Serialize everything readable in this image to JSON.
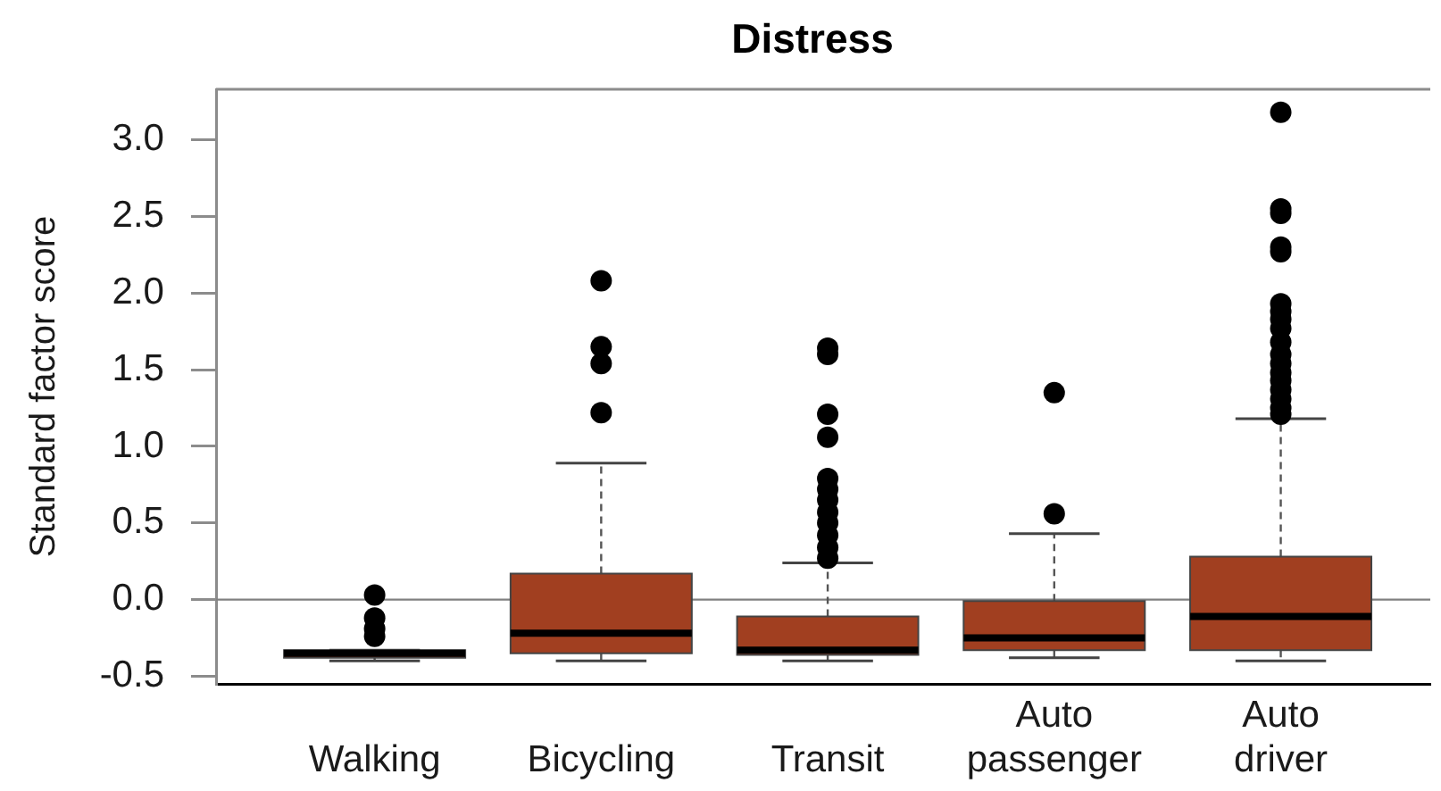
{
  "chart_data": {
    "type": "box",
    "title": "Distress",
    "ylabel": "Standard factor score",
    "categories": [
      "Walking",
      "Bicycling",
      "Transit",
      "Auto passenger",
      "Auto driver"
    ],
    "color": "#a13f20",
    "boxes": [
      {
        "low": -0.4,
        "q1": -0.38,
        "median": -0.35,
        "q3": -0.33,
        "high": -0.33,
        "outliers": [
          0.03,
          -0.12,
          -0.19,
          -0.24
        ]
      },
      {
        "low": -0.4,
        "q1": -0.35,
        "median": -0.22,
        "q3": 0.17,
        "high": 0.89,
        "outliers": [
          2.08,
          1.65,
          1.54,
          1.22
        ]
      },
      {
        "low": -0.4,
        "q1": -0.36,
        "median": -0.33,
        "q3": -0.11,
        "high": 0.24,
        "outliers": [
          1.64,
          1.6,
          1.21,
          1.06,
          0.79,
          0.72,
          0.65,
          0.57,
          0.5,
          0.42,
          0.34,
          0.27
        ]
      },
      {
        "low": -0.38,
        "q1": -0.33,
        "median": -0.25,
        "q3": -0.01,
        "high": 0.43,
        "outliers": [
          1.35,
          0.56
        ]
      },
      {
        "low": -0.4,
        "q1": -0.33,
        "median": -0.11,
        "q3": 0.28,
        "high": 1.18,
        "outliers": [
          3.18,
          2.55,
          2.52,
          2.3,
          2.27,
          1.93,
          1.88,
          1.83,
          1.77,
          1.68,
          1.6,
          1.54,
          1.48,
          1.43,
          1.37,
          1.31,
          1.25,
          1.21
        ]
      }
    ],
    "ylim": [
      -0.55,
      3.33
    ],
    "yticks": [
      -0.5,
      {
        "value": 0,
        "label": "0.0"
      },
      0.5,
      {
        "value": 1,
        "label": "1.0"
      },
      1.5,
      {
        "value": 2,
        "label": "2.0"
      },
      2.5,
      {
        "value": 3,
        "label": "3.0"
      }
    ],
    "ref_lines": [
      {
        "axis": "y",
        "value": 0,
        "color": "#808080"
      }
    ]
  }
}
